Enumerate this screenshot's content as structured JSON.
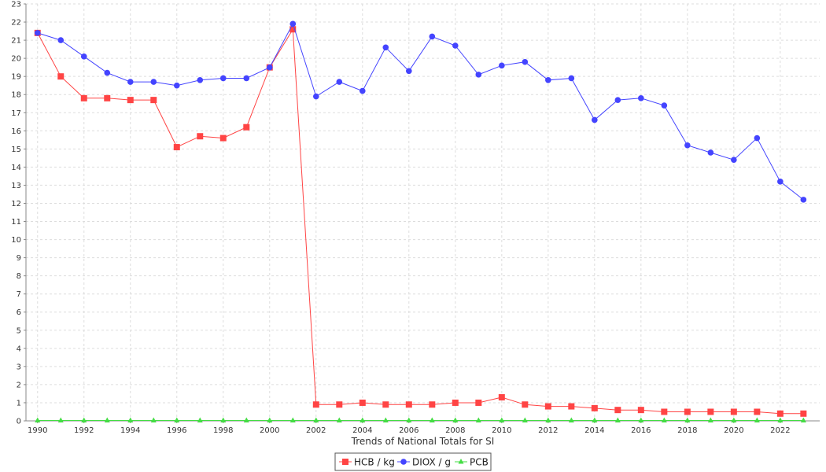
{
  "chart_data": {
    "type": "line",
    "xlabel": "Trends of National Totals for SI",
    "ylabel": "",
    "xlim": [
      1989.5,
      2023.7
    ],
    "ylim": [
      0,
      23
    ],
    "yticks": [
      0,
      1,
      2,
      3,
      4,
      5,
      6,
      7,
      8,
      9,
      10,
      11,
      12,
      13,
      14,
      15,
      16,
      17,
      18,
      19,
      20,
      21,
      22,
      23
    ],
    "xticks": [
      1990,
      1992,
      1994,
      1996,
      1998,
      2000,
      2002,
      2004,
      2006,
      2008,
      2010,
      2012,
      2014,
      2016,
      2018,
      2020,
      2022
    ],
    "grid": true,
    "legend_position": "bottom-center",
    "x": [
      1990,
      1991,
      1992,
      1993,
      1994,
      1995,
      1996,
      1997,
      1998,
      1999,
      2000,
      2001,
      2002,
      2003,
      2004,
      2005,
      2006,
      2007,
      2008,
      2009,
      2010,
      2011,
      2012,
      2013,
      2014,
      2015,
      2016,
      2017,
      2018,
      2019,
      2020,
      2021,
      2022,
      2023
    ],
    "series": [
      {
        "name": "HCB / kg",
        "color": "#ff4444",
        "marker": "square",
        "values": [
          21.4,
          19.0,
          17.8,
          17.8,
          17.7,
          17.7,
          15.1,
          15.7,
          15.6,
          16.2,
          19.5,
          21.6,
          0.9,
          0.9,
          1.0,
          0.9,
          0.9,
          0.9,
          1.0,
          1.0,
          1.3,
          0.9,
          0.8,
          0.8,
          0.7,
          0.6,
          0.6,
          0.5,
          0.5,
          0.5,
          0.5,
          0.5,
          0.4,
          0.4
        ]
      },
      {
        "name": "DIOX / g",
        "color": "#4444ff",
        "marker": "circle",
        "values": [
          21.4,
          21.0,
          20.1,
          19.2,
          18.7,
          18.7,
          18.5,
          18.8,
          18.9,
          18.9,
          19.5,
          21.9,
          17.9,
          18.7,
          18.2,
          20.6,
          19.3,
          21.2,
          20.7,
          19.1,
          19.6,
          19.8,
          18.8,
          18.9,
          16.6,
          17.7,
          17.8,
          17.4,
          15.2,
          14.8,
          14.4,
          15.6,
          13.2,
          12.2
        ]
      },
      {
        "name": "PCB",
        "color": "#44dd44",
        "marker": "triangle",
        "values": [
          0.02,
          0.02,
          0.02,
          0.02,
          0.02,
          0.02,
          0.02,
          0.02,
          0.02,
          0.02,
          0.02,
          0.02,
          0.02,
          0.02,
          0.02,
          0.02,
          0.02,
          0.02,
          0.02,
          0.02,
          0.02,
          0.02,
          0.02,
          0.02,
          0.02,
          0.02,
          0.02,
          0.02,
          0.02,
          0.02,
          0.02,
          0.02,
          0.02,
          0.02
        ]
      }
    ]
  }
}
